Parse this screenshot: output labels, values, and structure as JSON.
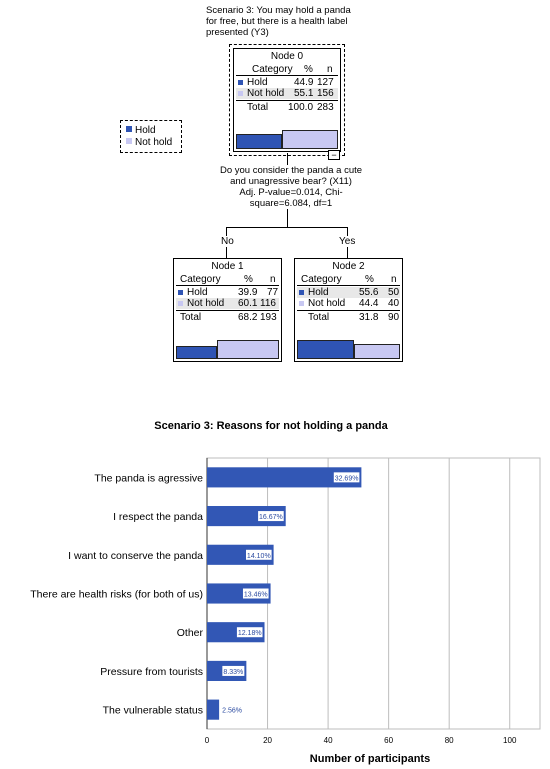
{
  "colors": {
    "hold": "#2f54b4",
    "not_hold": "#c8c8f2",
    "bar": "#3257b5",
    "grid": "#bdbdbd"
  },
  "tree": {
    "scenario_text": [
      "Scenario 3: You may hold a panda",
      "for free, but there is a health label",
      "presented (Y3)"
    ],
    "legend": {
      "hold": "Hold",
      "not_hold": "Not hold"
    },
    "headers": {
      "category": "Category",
      "pct": "%",
      "n": "n"
    },
    "nodes": [
      {
        "title": "Node 0",
        "rows": [
          {
            "label": "Hold",
            "pct": "44.9",
            "n": "127"
          },
          {
            "label": "Not hold",
            "pct": "55.1",
            "n": "156"
          }
        ],
        "total_label": "Total",
        "total_pct": "100.0",
        "total_n": "283",
        "hold_share": 0.449,
        "not_hold_share": 0.551
      },
      {
        "title": "Node 1",
        "rows": [
          {
            "label": "Hold",
            "pct": "39.9",
            "n": "77"
          },
          {
            "label": "Not hold",
            "pct": "60.1",
            "n": "116"
          }
        ],
        "total_label": "Total",
        "total_pct": "68.2",
        "total_n": "193",
        "hold_share": 0.399,
        "not_hold_share": 0.601
      },
      {
        "title": "Node 2",
        "rows": [
          {
            "label": "Hold",
            "pct": "55.6",
            "n": "50"
          },
          {
            "label": "Not hold",
            "pct": "44.4",
            "n": "40"
          }
        ],
        "total_label": "Total",
        "total_pct": "31.8",
        "total_n": "90",
        "hold_share": 0.556,
        "not_hold_share": 0.444
      }
    ],
    "collapse_symbol": "−",
    "split_text": [
      "Do you consider the panda a cute",
      "and unagressive bear? (X11)",
      "Adj. P-value=0.014, Chi-",
      "square=6.084, df=1"
    ],
    "branch_left": "No",
    "branch_right": "Yes"
  },
  "chart_data": {
    "type": "bar",
    "orientation": "horizontal",
    "title": "Scenario 3: Reasons for not holding a panda",
    "xlabel": "Number of participants",
    "ylabel": "",
    "categories": [
      "The panda is agressive",
      "I respect the panda",
      "I want to conserve the panda",
      "There are health risks (for both of us)",
      "Other",
      "Pressure from tourists",
      "The vulnerable status"
    ],
    "values": [
      51,
      26,
      22,
      21,
      19,
      13,
      4
    ],
    "data_labels": [
      "32.69%",
      "16.67%",
      "14.10%",
      "13.46%",
      "12.18%",
      "8.33%",
      "2.56%"
    ],
    "xlim": [
      0,
      110
    ],
    "xticks": [
      0,
      20,
      40,
      60,
      80,
      100
    ],
    "grid": true
  }
}
